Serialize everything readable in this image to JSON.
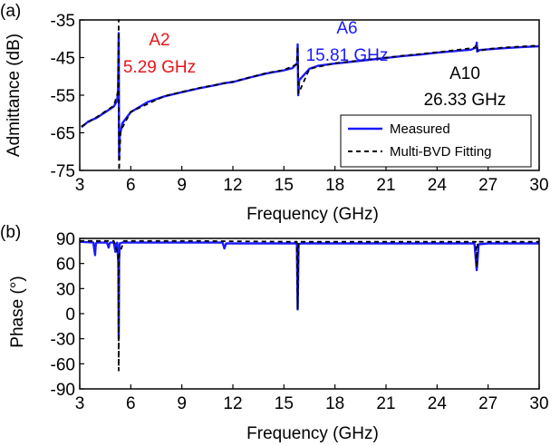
{
  "chart_data": [
    {
      "panel_label": "(a)",
      "type": "line",
      "xlabel": "Frequency (GHz)",
      "ylabel": "Admittance (dB)",
      "xlim": [
        3,
        30
      ],
      "ylim": [
        -75,
        -35
      ],
      "xticks": [
        "3",
        "6",
        "9",
        "12",
        "15",
        "18",
        "21",
        "24",
        "27",
        "30"
      ],
      "yticks": [
        "-35",
        "-45",
        "-55",
        "-65",
        "-75"
      ],
      "grid": false,
      "legend_position": "bottom-right",
      "series": [
        {
          "name": "Measured",
          "color": "#1a1aff",
          "style": "solid",
          "x": [
            3.1,
            3.5,
            4.0,
            4.5,
            5.0,
            5.2,
            5.25,
            5.29,
            5.31,
            5.35,
            5.5,
            6.0,
            7.0,
            8.0,
            9.0,
            10.0,
            11.0,
            11.5,
            12.0,
            13.0,
            14.0,
            15.0,
            15.5,
            15.78,
            15.81,
            15.84,
            15.9,
            16.5,
            17.0,
            18.0,
            19.0,
            20.0,
            21.0,
            22.0,
            23.0,
            24.0,
            25.0,
            26.0,
            26.3,
            26.33,
            26.36,
            26.5,
            27.0,
            28.0,
            29.0,
            30.0
          ],
          "y": [
            -63.5,
            -62.0,
            -61.0,
            -59.5,
            -58.0,
            -56.5,
            -53.5,
            -38.5,
            -72.0,
            -66.0,
            -62.5,
            -59.5,
            -56.8,
            -55.3,
            -54.2,
            -53.2,
            -52.3,
            -51.8,
            -51.5,
            -50.3,
            -49.2,
            -48.4,
            -47.8,
            -46.5,
            -41.5,
            -55.0,
            -51.0,
            -48.0,
            -47.2,
            -46.6,
            -46.1,
            -45.6,
            -45.1,
            -44.6,
            -44.2,
            -43.7,
            -43.3,
            -42.9,
            -42.3,
            -41.0,
            -43.4,
            -43.0,
            -42.8,
            -42.5,
            -42.2,
            -42.0
          ]
        },
        {
          "name": "Multi-BVD Fitting",
          "color": "#000000",
          "style": "dashed",
          "x": [
            3.1,
            4.0,
            5.0,
            5.26,
            5.29,
            5.31,
            5.4,
            6.0,
            8.0,
            10.0,
            12.0,
            14.0,
            15.0,
            15.75,
            15.81,
            15.86,
            16.5,
            18.0,
            20.0,
            22.0,
            24.0,
            26.2,
            26.33,
            26.4,
            27.0,
            28.0,
            30.0
          ],
          "y": [
            -63.3,
            -60.8,
            -57.8,
            -54.0,
            -35.0,
            -75.0,
            -64.5,
            -59.4,
            -55.2,
            -53.1,
            -51.4,
            -49.1,
            -48.3,
            -46.8,
            -42.0,
            -54.5,
            -48.0,
            -46.5,
            -45.5,
            -44.5,
            -43.6,
            -42.4,
            -41.5,
            -43.3,
            -42.7,
            -42.3,
            -41.8
          ]
        }
      ],
      "annotations": [
        {
          "lines": [
            "A2",
            "5.29 GHz"
          ],
          "color": "#e8141a"
        },
        {
          "lines": [
            "A6",
            "15.81 GHz"
          ],
          "color": "#1a1aff"
        },
        {
          "lines": [
            "A10",
            "26.33 GHz"
          ],
          "color": "#000000"
        }
      ]
    },
    {
      "panel_label": "(b)",
      "type": "line",
      "xlabel": "Frequency (GHz)",
      "ylabel": "Phase (°)",
      "xlim": [
        3,
        30
      ],
      "ylim": [
        -90,
        90
      ],
      "xticks": [
        "3",
        "6",
        "9",
        "12",
        "15",
        "18",
        "21",
        "24",
        "27",
        "30"
      ],
      "yticks": [
        "90",
        "60",
        "30",
        "0",
        "-30",
        "-60",
        "-90"
      ],
      "grid": false,
      "series": [
        {
          "name": "Measured",
          "color": "#1a1aff",
          "style": "solid",
          "x": [
            3.0,
            3.8,
            3.9,
            3.95,
            4.0,
            4.6,
            4.7,
            4.75,
            4.8,
            5.0,
            5.1,
            5.15,
            5.2,
            5.27,
            5.29,
            5.31,
            5.35,
            5.5,
            6.0,
            8.0,
            11.4,
            11.5,
            11.6,
            15.0,
            15.76,
            15.81,
            15.86,
            16.0,
            20.0,
            25.0,
            26.2,
            26.33,
            26.45,
            27.0,
            30.0
          ],
          "y": [
            86,
            85,
            70,
            84,
            85,
            85,
            79,
            84,
            85,
            85,
            74,
            84,
            85,
            60,
            -30,
            62,
            84,
            85,
            85,
            85,
            85,
            78,
            84,
            84,
            84,
            5,
            83,
            84,
            84,
            84,
            84,
            52,
            83,
            84,
            84
          ]
        },
        {
          "name": "Multi-BVD Fitting",
          "color": "#000000",
          "style": "dashed",
          "x": [
            3.0,
            5.0,
            5.27,
            5.29,
            5.31,
            5.6,
            10.0,
            15.76,
            15.81,
            15.86,
            20.0,
            26.28,
            26.33,
            26.38,
            30.0
          ],
          "y": [
            87,
            87,
            70,
            -68,
            70,
            87,
            87,
            86,
            6,
            86,
            86,
            86,
            55,
            86,
            86
          ]
        }
      ]
    }
  ]
}
